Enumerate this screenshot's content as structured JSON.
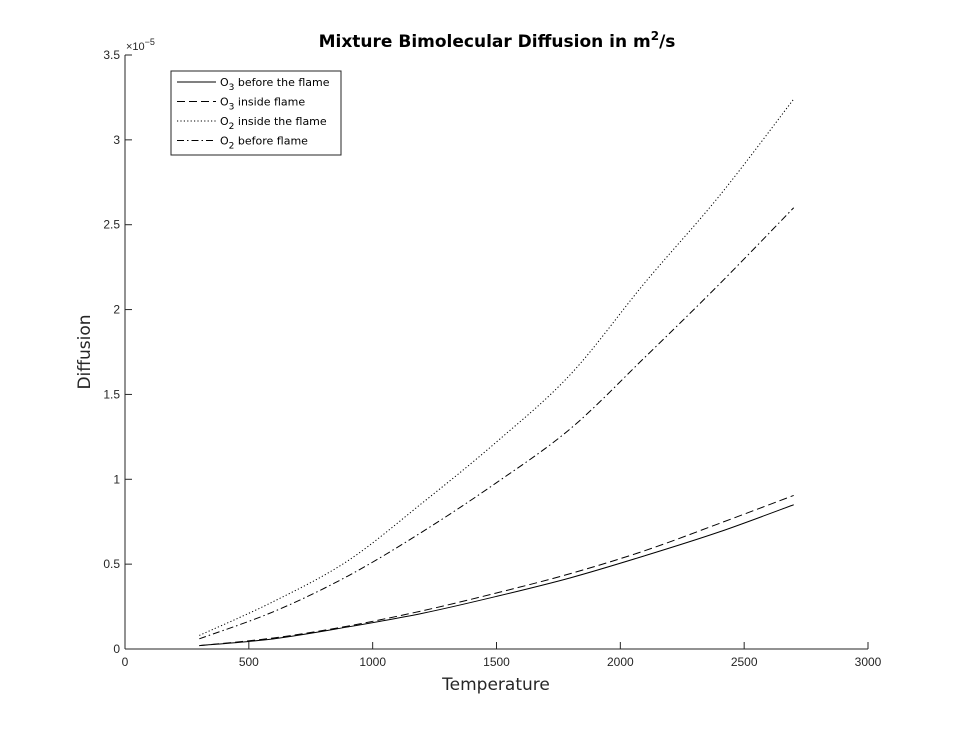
{
  "chart_data": {
    "type": "line",
    "title": {
      "prefix": "Mixture Bimolecular Diffusion  in m",
      "superscript": "2",
      "suffix": "/s"
    },
    "xlabel": "Temperature",
    "ylabel": "Diffusion",
    "xlim": [
      0,
      3000
    ],
    "ylim": [
      0,
      3.5
    ],
    "y_multiplier": {
      "base": "×10",
      "exponent": "−5"
    },
    "x_ticks": [
      0,
      500,
      1000,
      1500,
      2000,
      2500,
      3000
    ],
    "x_tick_labels": [
      "0",
      "500",
      "1000",
      "1500",
      "2000",
      "2500",
      "3000"
    ],
    "y_ticks": [
      0,
      0.5,
      1,
      1.5,
      2,
      2.5,
      3,
      3.5
    ],
    "y_tick_labels": [
      "0",
      "0.5",
      "1",
      "1.5",
      "2",
      "2.5",
      "3",
      "3.5"
    ],
    "grid": false,
    "legend_position": "top-left",
    "series": [
      {
        "label_main": "O",
        "label_sub": "3",
        "label_rest": " before the flame",
        "dash": "solid",
        "x": [
          300,
          600,
          900,
          1200,
          1500,
          1800,
          2100,
          2400,
          2700
        ],
        "y": [
          0.02,
          0.06,
          0.13,
          0.21,
          0.31,
          0.42,
          0.55,
          0.69,
          0.85
        ]
      },
      {
        "label_main": "O",
        "label_sub": "3",
        "label_rest": " inside flame",
        "dash": "dashed",
        "x": [
          300,
          600,
          900,
          1200,
          1500,
          1800,
          2100,
          2400,
          2700
        ],
        "y": [
          0.02,
          0.065,
          0.135,
          0.225,
          0.33,
          0.445,
          0.58,
          0.74,
          0.905
        ]
      },
      {
        "label_main": "O",
        "label_sub": "2",
        "label_rest": " inside the flame",
        "dash": "dotted",
        "x": [
          300,
          600,
          900,
          1200,
          1500,
          1800,
          2100,
          2400,
          2700
        ],
        "y": [
          0.08,
          0.28,
          0.52,
          0.86,
          1.22,
          1.62,
          2.16,
          2.67,
          3.24
        ]
      },
      {
        "label_main": "O",
        "label_sub": "2",
        "label_rest": " before flame",
        "dash": "dashdot",
        "x": [
          300,
          600,
          900,
          1200,
          1500,
          1800,
          2100,
          2400,
          2700
        ],
        "y": [
          0.06,
          0.22,
          0.43,
          0.69,
          0.98,
          1.3,
          1.72,
          2.15,
          2.6
        ]
      }
    ]
  }
}
